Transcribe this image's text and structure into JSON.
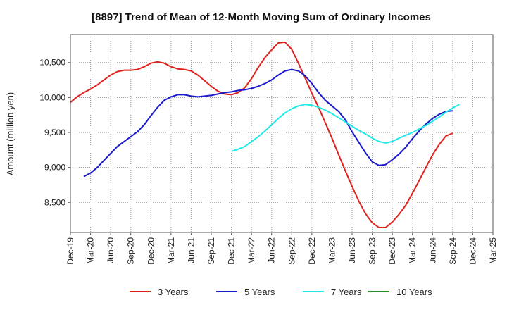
{
  "chart_data": {
    "type": "line",
    "title": "[8897]  Trend of Mean of 12-Month Moving Sum of Ordinary Incomes",
    "xlabel": "",
    "ylabel": "Amount (million yen)",
    "x_categories": [
      "Dec-19",
      "Mar-20",
      "Jun-20",
      "Sep-20",
      "Dec-20",
      "Mar-21",
      "Jun-21",
      "Sep-21",
      "Dec-21",
      "Mar-22",
      "Jun-22",
      "Sep-22",
      "Dec-22",
      "Mar-23",
      "Jun-23",
      "Sep-23",
      "Dec-23",
      "Mar-24",
      "Jun-24",
      "Sep-24",
      "Dec-24",
      "Mar-25"
    ],
    "ylim": [
      8070,
      10900
    ],
    "yticks": [
      8500,
      9000,
      9500,
      10000,
      10500
    ],
    "ytick_labels": [
      "8,500",
      "9,000",
      "9,500",
      "10,000",
      "10,500"
    ],
    "grid": true,
    "legend_position": "bottom",
    "series": [
      {
        "name": "3 Years",
        "color": "#e0201b",
        "start_index": 0,
        "values": [
          9930,
          10010,
          10070,
          10120,
          10180,
          10250,
          10320,
          10370,
          10390,
          10390,
          10400,
          10440,
          10490,
          10510,
          10490,
          10440,
          10410,
          10400,
          10380,
          10320,
          10240,
          10160,
          10090,
          10050,
          10040,
          10070,
          10140,
          10270,
          10430,
          10570,
          10680,
          10780,
          10790,
          10690,
          10490,
          10280,
          10060,
          9860,
          9640,
          9420,
          9180,
          8950,
          8730,
          8520,
          8340,
          8210,
          8140,
          8140,
          8220,
          8330,
          8460,
          8630,
          8810,
          9000,
          9180,
          9330,
          9450,
          9490
        ]
      },
      {
        "name": "5 Years",
        "color": "#1a1acc",
        "start_index": 2,
        "values": [
          8870,
          8920,
          9000,
          9100,
          9200,
          9300,
          9370,
          9440,
          9510,
          9610,
          9740,
          9860,
          9960,
          10010,
          10040,
          10040,
          10020,
          10010,
          10020,
          10030,
          10050,
          10070,
          10080,
          10100,
          10110,
          10130,
          10160,
          10200,
          10250,
          10320,
          10380,
          10400,
          10380,
          10310,
          10200,
          10070,
          9960,
          9880,
          9800,
          9680,
          9510,
          9360,
          9210,
          9080,
          9030,
          9040,
          9110,
          9190,
          9290,
          9410,
          9520,
          9620,
          9700,
          9760,
          9800,
          9810
        ]
      },
      {
        "name": "7 Years",
        "color": "#22e8e8",
        "start_index": 24,
        "values": [
          9230,
          9260,
          9300,
          9370,
          9440,
          9520,
          9610,
          9700,
          9780,
          9840,
          9880,
          9900,
          9890,
          9860,
          9820,
          9770,
          9710,
          9650,
          9590,
          9530,
          9480,
          9420,
          9370,
          9350,
          9370,
          9420,
          9460,
          9500,
          9550,
          9600,
          9660,
          9720,
          9790,
          9850,
          9900
        ]
      },
      {
        "name": "10 Years",
        "color": "#228822",
        "start_index": 0,
        "values": []
      }
    ]
  }
}
